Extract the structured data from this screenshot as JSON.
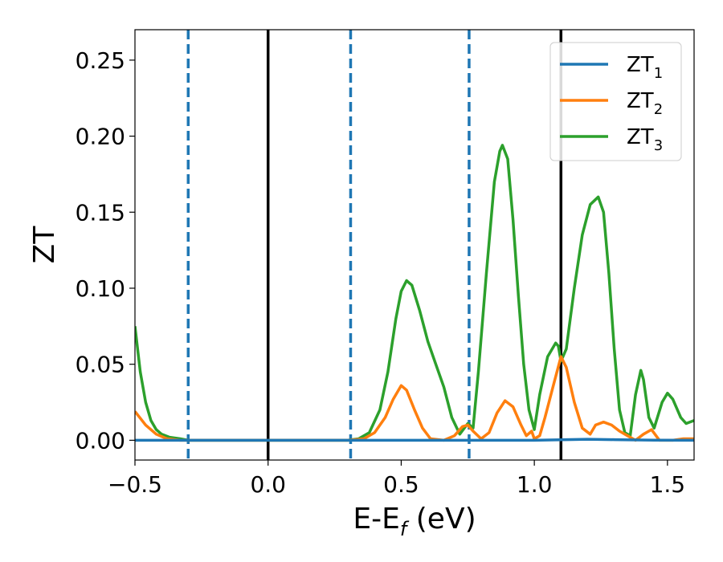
{
  "chart_data": {
    "type": "line",
    "xlabel": "E-E",
    "xlabel_sub": "f",
    "xlabel_unit": " (eV)",
    "ylabel": "ZT",
    "xlim": [
      -0.5,
      1.6
    ],
    "ylim": [
      -0.013,
      0.27
    ],
    "xticks": [
      -0.5,
      0.0,
      0.5,
      1.0,
      1.5
    ],
    "xtick_labels": [
      "−0.5",
      "0.0",
      "0.5",
      "1.0",
      "1.5"
    ],
    "yticks": [
      0.0,
      0.05,
      0.1,
      0.15,
      0.2,
      0.25
    ],
    "ytick_labels": [
      "0.00",
      "0.05",
      "0.10",
      "0.15",
      "0.20",
      "0.25"
    ],
    "grid": false,
    "legend_position": "top-right",
    "vlines_solid": [
      0.0,
      1.1
    ],
    "vlines_dashed": [
      -0.3,
      0.31,
      0.755
    ],
    "vline_solid_color": "#000000",
    "vline_dashed_color": "#1f77b4",
    "series": [
      {
        "name": "ZT",
        "sub": "1",
        "color": "#1f77b4",
        "points": [
          [
            -0.5,
            0.0
          ],
          [
            0.5,
            0.0
          ],
          [
            0.75,
            0.0
          ],
          [
            1.0,
            0.0
          ],
          [
            1.1,
            0.0003
          ],
          [
            1.2,
            0.0007
          ],
          [
            1.3,
            0.0004
          ],
          [
            1.45,
            0.0001
          ],
          [
            1.6,
            0.0
          ]
        ]
      },
      {
        "name": "ZT",
        "sub": "2",
        "color": "#ff7f0e",
        "points": [
          [
            -0.5,
            0.019
          ],
          [
            -0.46,
            0.01
          ],
          [
            -0.42,
            0.004
          ],
          [
            -0.38,
            0.001
          ],
          [
            -0.33,
            0.0
          ],
          [
            0.3,
            0.0
          ],
          [
            0.36,
            0.001
          ],
          [
            0.4,
            0.005
          ],
          [
            0.44,
            0.015
          ],
          [
            0.47,
            0.027
          ],
          [
            0.5,
            0.036
          ],
          [
            0.52,
            0.033
          ],
          [
            0.55,
            0.02
          ],
          [
            0.58,
            0.008
          ],
          [
            0.61,
            0.001
          ],
          [
            0.66,
            0.0
          ],
          [
            0.7,
            0.003
          ],
          [
            0.73,
            0.009
          ],
          [
            0.75,
            0.01
          ],
          [
            0.77,
            0.006
          ],
          [
            0.8,
            0.001
          ],
          [
            0.83,
            0.005
          ],
          [
            0.86,
            0.018
          ],
          [
            0.89,
            0.026
          ],
          [
            0.92,
            0.022
          ],
          [
            0.95,
            0.01
          ],
          [
            0.97,
            0.003
          ],
          [
            0.99,
            0.006
          ],
          [
            1.0,
            0.001
          ],
          [
            1.02,
            0.003
          ],
          [
            1.04,
            0.015
          ],
          [
            1.07,
            0.035
          ],
          [
            1.1,
            0.055
          ],
          [
            1.12,
            0.048
          ],
          [
            1.15,
            0.025
          ],
          [
            1.18,
            0.008
          ],
          [
            1.21,
            0.004
          ],
          [
            1.23,
            0.01
          ],
          [
            1.26,
            0.012
          ],
          [
            1.29,
            0.01
          ],
          [
            1.32,
            0.006
          ],
          [
            1.35,
            0.003
          ],
          [
            1.38,
            0.0
          ],
          [
            1.41,
            0.004
          ],
          [
            1.44,
            0.007
          ],
          [
            1.47,
            0.0
          ],
          [
            1.52,
            0.0
          ],
          [
            1.56,
            0.001
          ],
          [
            1.6,
            0.001
          ]
        ]
      },
      {
        "name": "ZT",
        "sub": "3",
        "color": "#2ca02c",
        "points": [
          [
            -0.5,
            0.075
          ],
          [
            -0.48,
            0.045
          ],
          [
            -0.46,
            0.025
          ],
          [
            -0.44,
            0.013
          ],
          [
            -0.42,
            0.007
          ],
          [
            -0.4,
            0.004
          ],
          [
            -0.37,
            0.002
          ],
          [
            -0.33,
            0.001
          ],
          [
            -0.3,
            0.0
          ],
          [
            0.3,
            0.0
          ],
          [
            0.34,
            0.001
          ],
          [
            0.38,
            0.005
          ],
          [
            0.42,
            0.02
          ],
          [
            0.45,
            0.045
          ],
          [
            0.48,
            0.08
          ],
          [
            0.5,
            0.098
          ],
          [
            0.52,
            0.105
          ],
          [
            0.54,
            0.102
          ],
          [
            0.57,
            0.085
          ],
          [
            0.6,
            0.065
          ],
          [
            0.63,
            0.05
          ],
          [
            0.66,
            0.035
          ],
          [
            0.69,
            0.015
          ],
          [
            0.72,
            0.004
          ],
          [
            0.75,
            0.011
          ],
          [
            0.77,
            0.008
          ],
          [
            0.79,
            0.045
          ],
          [
            0.82,
            0.11
          ],
          [
            0.85,
            0.17
          ],
          [
            0.87,
            0.19
          ],
          [
            0.88,
            0.194
          ],
          [
            0.9,
            0.185
          ],
          [
            0.92,
            0.145
          ],
          [
            0.94,
            0.095
          ],
          [
            0.96,
            0.05
          ],
          [
            0.98,
            0.02
          ],
          [
            1.0,
            0.007
          ],
          [
            1.02,
            0.03
          ],
          [
            1.05,
            0.055
          ],
          [
            1.08,
            0.064
          ],
          [
            1.09,
            0.062
          ],
          [
            1.1,
            0.052
          ],
          [
            1.12,
            0.06
          ],
          [
            1.15,
            0.1
          ],
          [
            1.18,
            0.135
          ],
          [
            1.21,
            0.155
          ],
          [
            1.24,
            0.16
          ],
          [
            1.26,
            0.15
          ],
          [
            1.28,
            0.11
          ],
          [
            1.3,
            0.06
          ],
          [
            1.32,
            0.02
          ],
          [
            1.34,
            0.005
          ],
          [
            1.36,
            0.003
          ],
          [
            1.38,
            0.03
          ],
          [
            1.4,
            0.046
          ],
          [
            1.41,
            0.04
          ],
          [
            1.43,
            0.015
          ],
          [
            1.45,
            0.008
          ],
          [
            1.48,
            0.025
          ],
          [
            1.5,
            0.031
          ],
          [
            1.52,
            0.027
          ],
          [
            1.55,
            0.015
          ],
          [
            1.57,
            0.011
          ],
          [
            1.6,
            0.013
          ]
        ]
      }
    ]
  }
}
